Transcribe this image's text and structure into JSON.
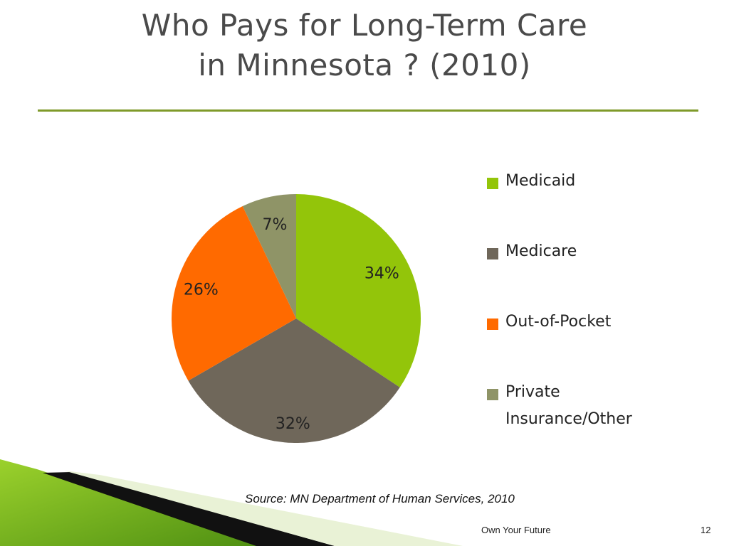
{
  "slide": {
    "title_line1": "Who Pays for Long-Term Care",
    "title_line2": "in Minnesota ? (2010)",
    "source": "Source: MN Department of Human Services, 2010",
    "footer": "Own Your Future",
    "page_number": "12"
  },
  "colors": {
    "accent_rule": "#7f9a2a"
  },
  "chart_data": {
    "type": "pie",
    "title": "",
    "series": [
      {
        "name": "Medicaid",
        "value": 34,
        "label": "34%",
        "color": "#93c50a"
      },
      {
        "name": "Medicare",
        "value": 32,
        "label": "32%",
        "color": "#6f675a"
      },
      {
        "name": "Out-of-Pocket",
        "value": 26,
        "label": "26%",
        "color": "#ff6a00"
      },
      {
        "name": "Private Insurance/Other",
        "value": 7,
        "label": "7%",
        "color": "#8f9467"
      }
    ],
    "start_angle": "12 o'clock",
    "direction": "clockwise",
    "legend_position": "right"
  }
}
